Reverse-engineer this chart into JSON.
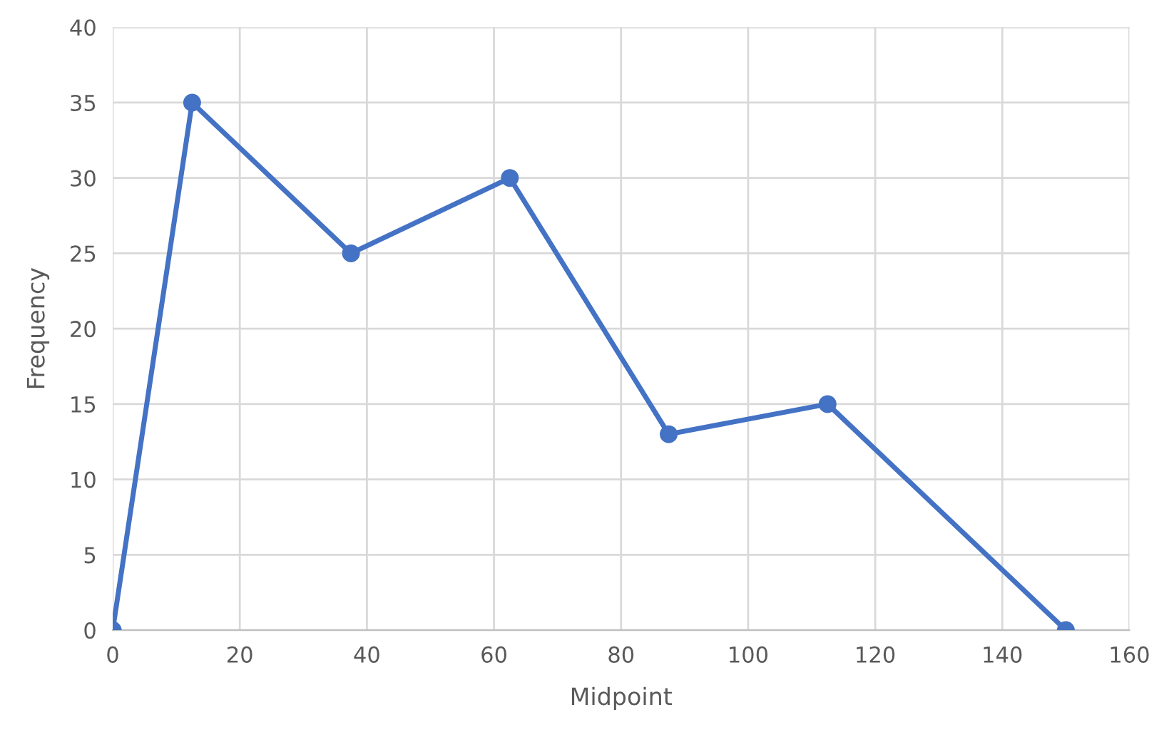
{
  "chart_data": {
    "type": "line",
    "xlabel": "Midpoint",
    "ylabel": "Frequency",
    "x": [
      0,
      12.5,
      37.5,
      62.5,
      87.5,
      112.5,
      150
    ],
    "series": [
      {
        "color": "#4472c4",
        "values": [
          0,
          35,
          25,
          30,
          13,
          15,
          0
        ]
      }
    ],
    "xlim": [
      0,
      160
    ],
    "xticks": [
      0,
      20,
      40,
      60,
      80,
      100,
      120,
      140,
      160
    ],
    "ylim": [
      0,
      40
    ],
    "yticks": [
      0,
      5,
      10,
      15,
      20,
      25,
      30,
      35,
      40
    ],
    "grid": true,
    "marker": "circle",
    "line_style": "solid"
  }
}
